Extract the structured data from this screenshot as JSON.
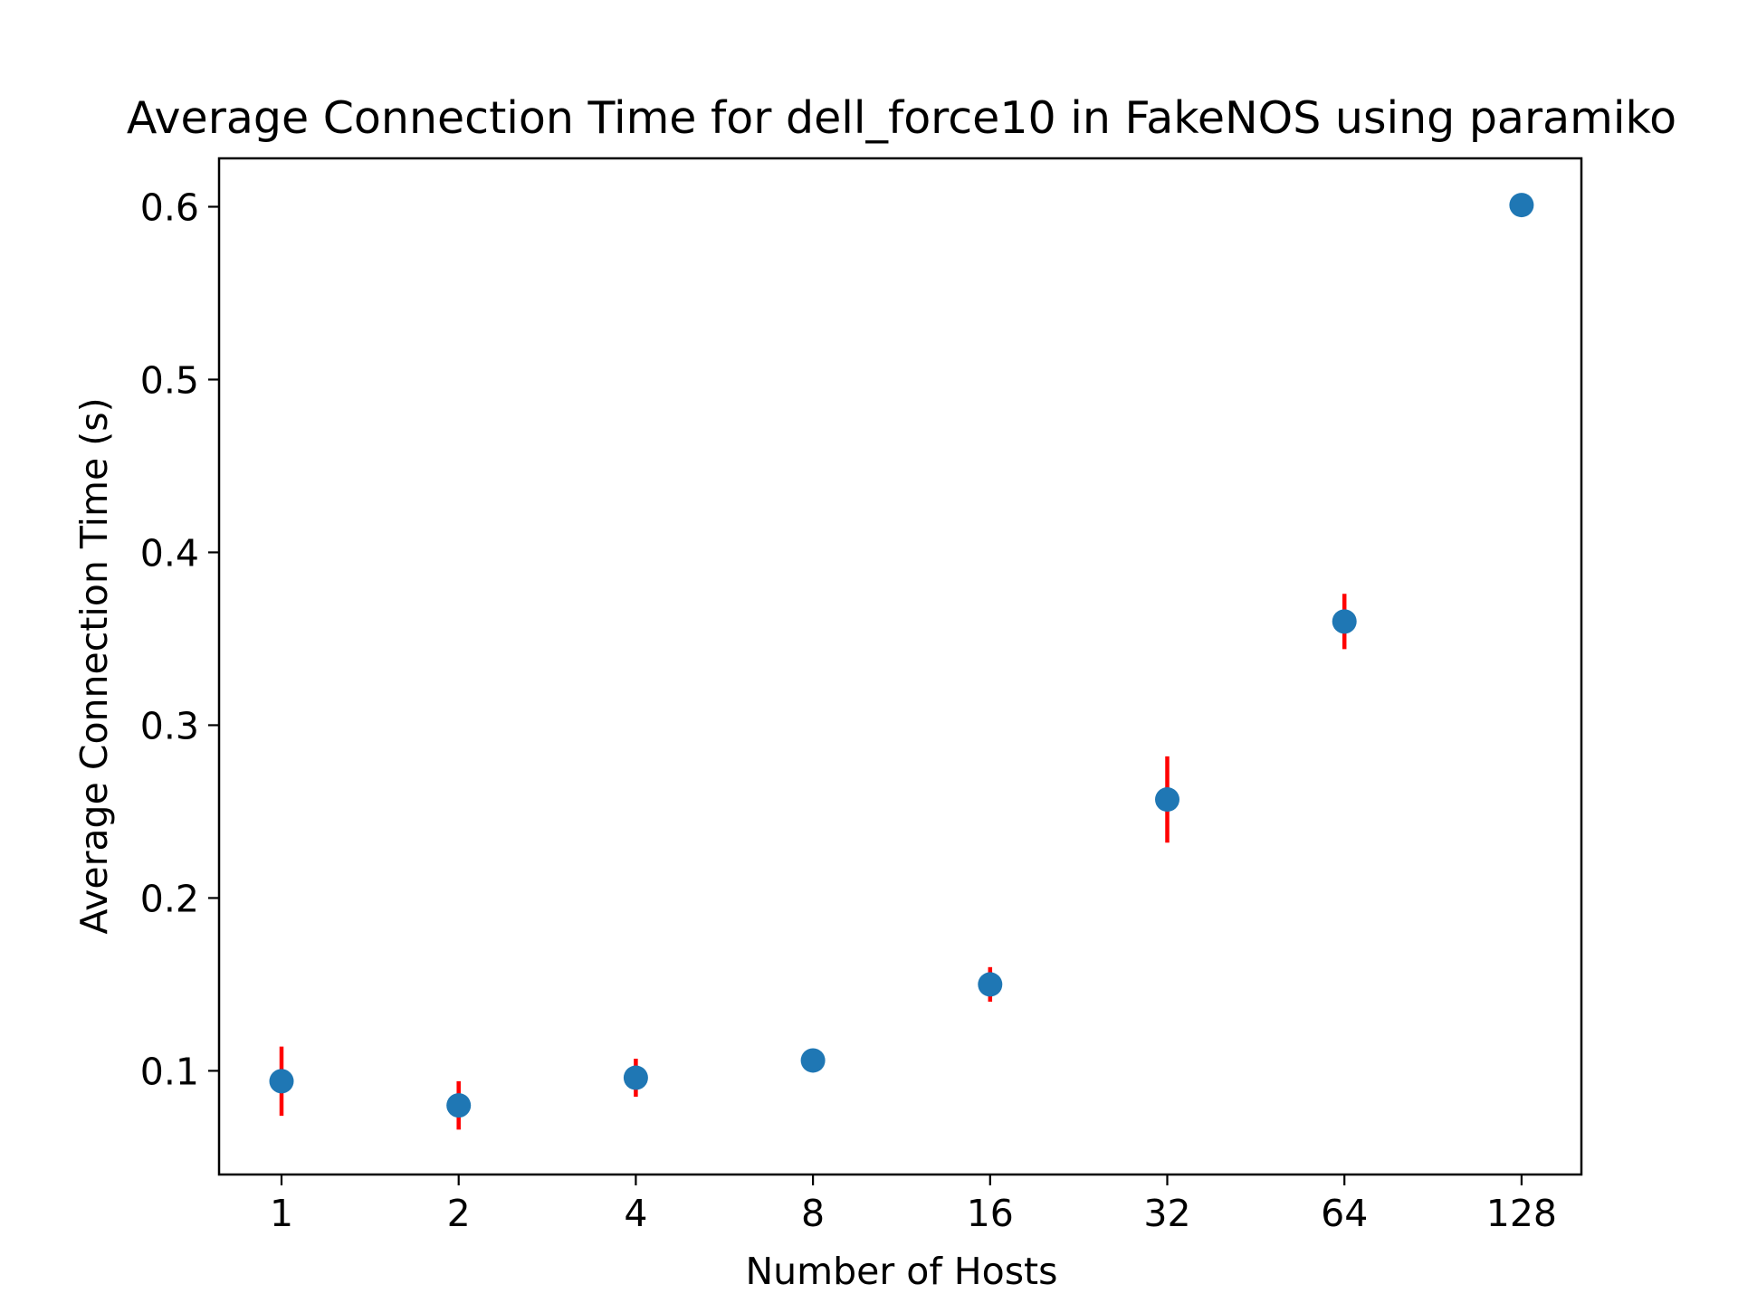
{
  "chart_data": {
    "type": "scatter",
    "title": "Average Connection Time for dell_force10 in FakeNOS using paramiko",
    "xlabel": "Number of Hosts",
    "ylabel": "Average Connection Time (s)",
    "xscale": "log2",
    "x": [
      1,
      2,
      4,
      8,
      16,
      32,
      64,
      128
    ],
    "xticklabels": [
      "1",
      "2",
      "4",
      "8",
      "16",
      "32",
      "64",
      "128"
    ],
    "y": [
      0.094,
      0.08,
      0.096,
      0.106,
      0.15,
      0.257,
      0.36,
      0.601
    ],
    "yerr": [
      0.02,
      0.014,
      0.011,
      0.0,
      0.01,
      0.025,
      0.016,
      0.0
    ],
    "yticks": [
      0.1,
      0.2,
      0.3,
      0.4,
      0.5,
      0.6
    ],
    "yticklabels": [
      "0.1",
      "0.2",
      "0.3",
      "0.4",
      "0.5",
      "0.6"
    ],
    "ylim": [
      0.04,
      0.628
    ],
    "grid": false,
    "marker_color": "#1f77b4",
    "errorbar_color": "#ff0000"
  }
}
